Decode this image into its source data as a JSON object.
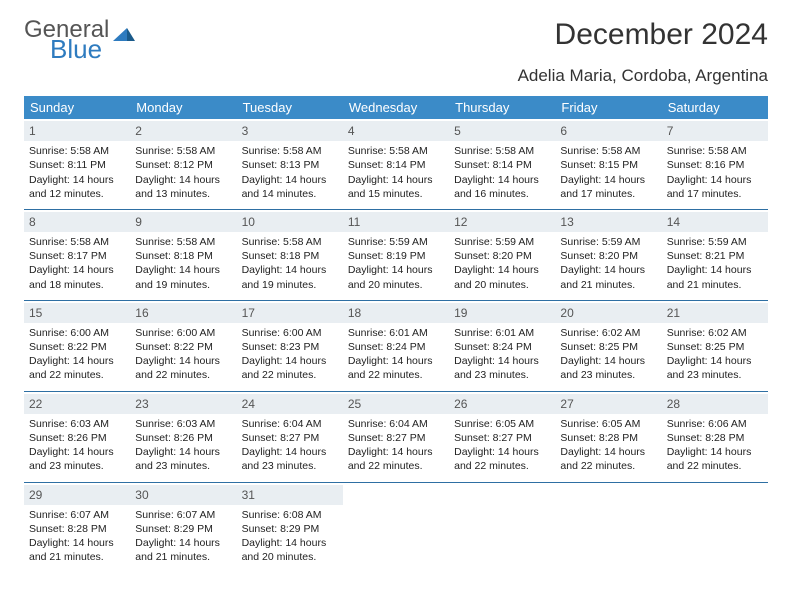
{
  "logo": {
    "text1": "General",
    "text2": "Blue"
  },
  "title": "December 2024",
  "location": "Adelia Maria, Cordoba, Argentina",
  "colors": {
    "header_bg": "#3b8bc8",
    "header_text": "#ffffff",
    "daynum_bg": "#e9eef2",
    "row_border": "#2e6fa3",
    "logo_blue": "#2e7bbf"
  },
  "weekdays": [
    "Sunday",
    "Monday",
    "Tuesday",
    "Wednesday",
    "Thursday",
    "Friday",
    "Saturday"
  ],
  "days": [
    {
      "n": 1,
      "sr": "5:58 AM",
      "ss": "8:11 PM",
      "dh": 14,
      "dm": 12
    },
    {
      "n": 2,
      "sr": "5:58 AM",
      "ss": "8:12 PM",
      "dh": 14,
      "dm": 13
    },
    {
      "n": 3,
      "sr": "5:58 AM",
      "ss": "8:13 PM",
      "dh": 14,
      "dm": 14
    },
    {
      "n": 4,
      "sr": "5:58 AM",
      "ss": "8:14 PM",
      "dh": 14,
      "dm": 15
    },
    {
      "n": 5,
      "sr": "5:58 AM",
      "ss": "8:14 PM",
      "dh": 14,
      "dm": 16
    },
    {
      "n": 6,
      "sr": "5:58 AM",
      "ss": "8:15 PM",
      "dh": 14,
      "dm": 17
    },
    {
      "n": 7,
      "sr": "5:58 AM",
      "ss": "8:16 PM",
      "dh": 14,
      "dm": 17
    },
    {
      "n": 8,
      "sr": "5:58 AM",
      "ss": "8:17 PM",
      "dh": 14,
      "dm": 18
    },
    {
      "n": 9,
      "sr": "5:58 AM",
      "ss": "8:18 PM",
      "dh": 14,
      "dm": 19
    },
    {
      "n": 10,
      "sr": "5:58 AM",
      "ss": "8:18 PM",
      "dh": 14,
      "dm": 19
    },
    {
      "n": 11,
      "sr": "5:59 AM",
      "ss": "8:19 PM",
      "dh": 14,
      "dm": 20
    },
    {
      "n": 12,
      "sr": "5:59 AM",
      "ss": "8:20 PM",
      "dh": 14,
      "dm": 20
    },
    {
      "n": 13,
      "sr": "5:59 AM",
      "ss": "8:20 PM",
      "dh": 14,
      "dm": 21
    },
    {
      "n": 14,
      "sr": "5:59 AM",
      "ss": "8:21 PM",
      "dh": 14,
      "dm": 21
    },
    {
      "n": 15,
      "sr": "6:00 AM",
      "ss": "8:22 PM",
      "dh": 14,
      "dm": 22
    },
    {
      "n": 16,
      "sr": "6:00 AM",
      "ss": "8:22 PM",
      "dh": 14,
      "dm": 22
    },
    {
      "n": 17,
      "sr": "6:00 AM",
      "ss": "8:23 PM",
      "dh": 14,
      "dm": 22
    },
    {
      "n": 18,
      "sr": "6:01 AM",
      "ss": "8:24 PM",
      "dh": 14,
      "dm": 22
    },
    {
      "n": 19,
      "sr": "6:01 AM",
      "ss": "8:24 PM",
      "dh": 14,
      "dm": 23
    },
    {
      "n": 20,
      "sr": "6:02 AM",
      "ss": "8:25 PM",
      "dh": 14,
      "dm": 23
    },
    {
      "n": 21,
      "sr": "6:02 AM",
      "ss": "8:25 PM",
      "dh": 14,
      "dm": 23
    },
    {
      "n": 22,
      "sr": "6:03 AM",
      "ss": "8:26 PM",
      "dh": 14,
      "dm": 23
    },
    {
      "n": 23,
      "sr": "6:03 AM",
      "ss": "8:26 PM",
      "dh": 14,
      "dm": 23
    },
    {
      "n": 24,
      "sr": "6:04 AM",
      "ss": "8:27 PM",
      "dh": 14,
      "dm": 23
    },
    {
      "n": 25,
      "sr": "6:04 AM",
      "ss": "8:27 PM",
      "dh": 14,
      "dm": 22
    },
    {
      "n": 26,
      "sr": "6:05 AM",
      "ss": "8:27 PM",
      "dh": 14,
      "dm": 22
    },
    {
      "n": 27,
      "sr": "6:05 AM",
      "ss": "8:28 PM",
      "dh": 14,
      "dm": 22
    },
    {
      "n": 28,
      "sr": "6:06 AM",
      "ss": "8:28 PM",
      "dh": 14,
      "dm": 22
    },
    {
      "n": 29,
      "sr": "6:07 AM",
      "ss": "8:28 PM",
      "dh": 14,
      "dm": 21
    },
    {
      "n": 30,
      "sr": "6:07 AM",
      "ss": "8:29 PM",
      "dh": 14,
      "dm": 21
    },
    {
      "n": 31,
      "sr": "6:08 AM",
      "ss": "8:29 PM",
      "dh": 14,
      "dm": 20
    }
  ],
  "labels": {
    "sunrise": "Sunrise:",
    "sunset": "Sunset:",
    "daylight": "Daylight:",
    "hours": "hours",
    "and": "and",
    "minutes": "minutes."
  },
  "fontsize": {
    "title": 30,
    "subtitle": 17,
    "weekday": 13,
    "daynum": 12,
    "cell": 10.5
  }
}
